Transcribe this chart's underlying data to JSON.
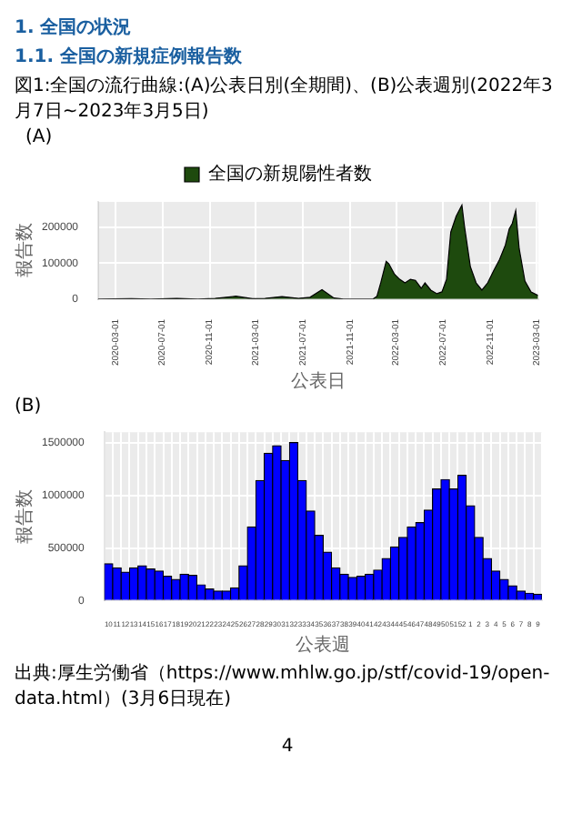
{
  "chart_data": [
    {
      "type": "area",
      "title": "図1:全国の流行曲線:(A)公表日別(全期間)、(B)公表週別(2022年3月7日~2023年3月5日)",
      "subtitle": "(A)",
      "annotations": [
        "1. 全国の状況",
        "1.1. 全国の新規症例報告数"
      ],
      "xlabel": "公表日",
      "ylabel": "報告数",
      "x": [
        "2020-01-16",
        "2020-04-11",
        "2020-06-01",
        "2020-08-07",
        "2020-10-01",
        "2020-11-15",
        "2021-01-08",
        "2021-02-20",
        "2021-03-25",
        "2021-05-08",
        "2021-06-20",
        "2021-07-20",
        "2021-08-20",
        "2021-09-20",
        "2021-10-15",
        "2021-12-01",
        "2021-12-31",
        "2022-01-10",
        "2022-01-20",
        "2022-02-03",
        "2022-02-10",
        "2022-02-24",
        "2022-03-10",
        "2022-03-24",
        "2022-04-07",
        "2022-04-20",
        "2022-05-05",
        "2022-05-15",
        "2022-05-30",
        "2022-06-15",
        "2022-06-28",
        "2022-07-10",
        "2022-07-21",
        "2022-08-04",
        "2022-08-19",
        "2022-08-26",
        "2022-09-10",
        "2022-09-25",
        "2022-10-10",
        "2022-10-25",
        "2022-11-10",
        "2022-11-25",
        "2022-12-10",
        "2022-12-20",
        "2022-12-28",
        "2023-01-06",
        "2023-01-15",
        "2023-01-30",
        "2023-02-15",
        "2023-03-05"
      ],
      "series": [
        {
          "name": "全国の新規陽性者数",
          "color": "#1e4a0e",
          "values": [
            0,
            1000,
            0,
            2000,
            0,
            2000,
            8000,
            1000,
            2000,
            7000,
            2000,
            5000,
            26000,
            3000,
            0,
            0,
            0,
            8000,
            46000,
            105000,
            98000,
            70000,
            55000,
            45000,
            55000,
            52000,
            30000,
            45000,
            25000,
            15000,
            20000,
            55000,
            186000,
            230000,
            261000,
            200000,
            90000,
            45000,
            25000,
            45000,
            80000,
            110000,
            150000,
            195000,
            210000,
            246000,
            140000,
            50000,
            20000,
            10000
          ]
        }
      ],
      "xlim": [
        "2020-01-16",
        "2023-03-05"
      ],
      "xticks": [
        "2020-03-01",
        "2020-07-01",
        "2020-11-01",
        "2021-03-01",
        "2021-07-01",
        "2021-11-01",
        "2022-03-01",
        "2022-07-01",
        "2022-11-01",
        "2023-03-01"
      ],
      "ylim": [
        0,
        270000
      ],
      "yticks": [
        0,
        100000,
        200000
      ],
      "grid": true,
      "legend": "top"
    },
    {
      "type": "bar",
      "title": "(B)",
      "xlabel": "公表週",
      "ylabel": "報告数",
      "annotations": [
        "出典:厚生労働省（https://www.mhlw.go.jp/stf/covid-19/open-data.html）(3月6日現在)",
        "4"
      ],
      "categories": [
        "10",
        "11",
        "12",
        "13",
        "14",
        "15",
        "16",
        "17",
        "18",
        "19",
        "20",
        "21",
        "22",
        "23",
        "24",
        "25",
        "26",
        "27",
        "28",
        "29",
        "30",
        "31",
        "32",
        "33",
        "34",
        "35",
        "36",
        "37",
        "38",
        "39",
        "40",
        "41",
        "42",
        "43",
        "44",
        "45",
        "46",
        "47",
        "48",
        "49",
        "50",
        "51",
        "52",
        "1",
        "2",
        "3",
        "4",
        "5",
        "6",
        "7",
        "8",
        "9"
      ],
      "series": [
        {
          "color": "#0000ff",
          "values": [
            350000,
            310000,
            270000,
            310000,
            330000,
            300000,
            280000,
            230000,
            200000,
            250000,
            240000,
            150000,
            110000,
            90000,
            90000,
            120000,
            330000,
            700000,
            1140000,
            1400000,
            1470000,
            1330000,
            1500000,
            1140000,
            850000,
            620000,
            460000,
            310000,
            250000,
            220000,
            230000,
            250000,
            290000,
            400000,
            510000,
            600000,
            700000,
            740000,
            860000,
            1060000,
            1150000,
            1060000,
            1190000,
            900000,
            600000,
            400000,
            280000,
            200000,
            140000,
            90000,
            70000,
            60000
          ]
        }
      ],
      "ylim": [
        0,
        1600000
      ],
      "yticks": [
        0,
        500000,
        1000000,
        1500000
      ],
      "grid": true
    }
  ]
}
